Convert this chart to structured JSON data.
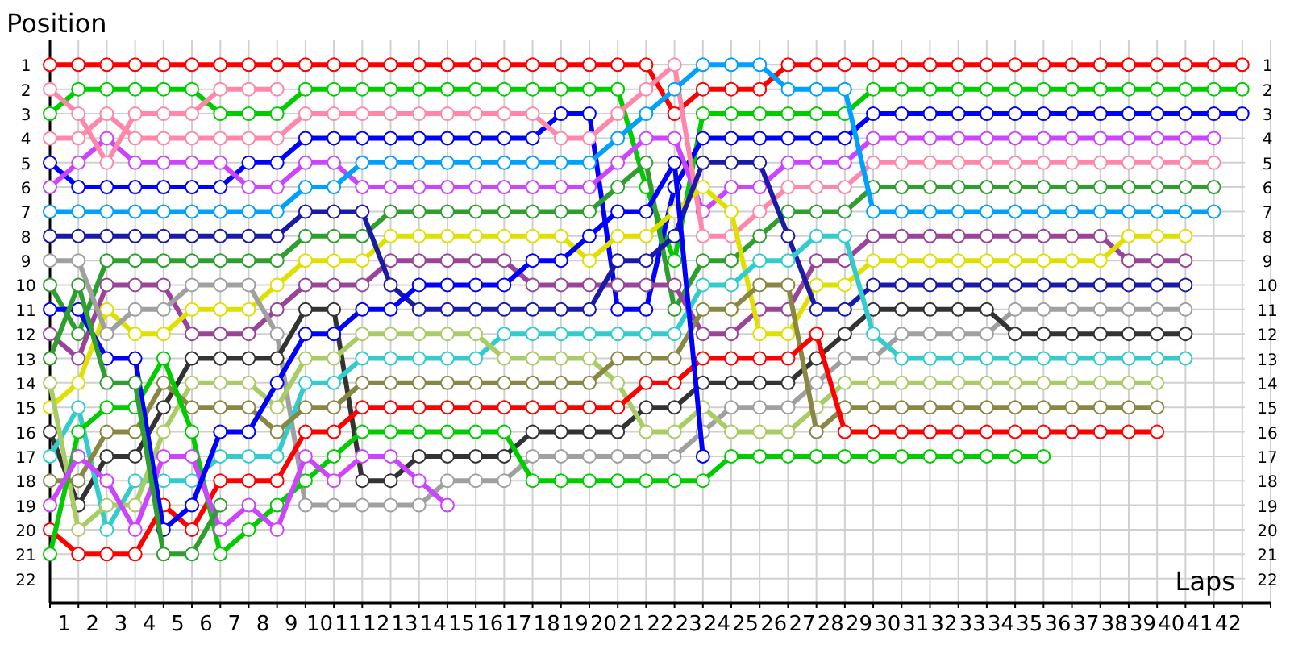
{
  "chart_data": {
    "type": "line",
    "xlabel": "Laps",
    "ylabel": "Position",
    "grid": true,
    "marker": "circle",
    "xlim": [
      0,
      43
    ],
    "ylim": [
      23,
      0
    ],
    "y2lim": [
      23,
      0
    ],
    "xticks": [
      {
        "value": 0,
        "label": null
      },
      {
        "value": 0.5,
        "label": "1"
      },
      {
        "value": 1,
        "label": null
      },
      {
        "value": 1.5,
        "label": "2"
      },
      {
        "value": 2,
        "label": null
      },
      {
        "value": 2.5,
        "label": "3"
      },
      {
        "value": 3,
        "label": null
      },
      {
        "value": 3.5,
        "label": "4"
      },
      {
        "value": 4,
        "label": null
      },
      {
        "value": 4.5,
        "label": "5"
      },
      {
        "value": 5,
        "label": null
      },
      {
        "value": 5.5,
        "label": "6"
      },
      {
        "value": 6,
        "label": null
      },
      {
        "value": 6.5,
        "label": "7"
      },
      {
        "value": 7,
        "label": null
      },
      {
        "value": 7.5,
        "label": "8"
      },
      {
        "value": 8,
        "label": null
      },
      {
        "value": 8.5,
        "label": "9"
      },
      {
        "value": 9,
        "label": null
      },
      {
        "value": 9.5,
        "label": "10"
      },
      {
        "value": 10,
        "label": null
      },
      {
        "value": 10.5,
        "label": "11"
      },
      {
        "value": 11,
        "label": null
      },
      {
        "value": 11.5,
        "label": "12"
      },
      {
        "value": 12,
        "label": null
      },
      {
        "value": 12.5,
        "label": "13"
      },
      {
        "value": 13,
        "label": null
      },
      {
        "value": 13.5,
        "label": "14"
      },
      {
        "value": 14,
        "label": null
      },
      {
        "value": 14.5,
        "label": "15"
      },
      {
        "value": 15,
        "label": null
      },
      {
        "value": 15.5,
        "label": "16"
      },
      {
        "value": 16,
        "label": null
      },
      {
        "value": 16.5,
        "label": "17"
      },
      {
        "value": 17,
        "label": null
      },
      {
        "value": 17.5,
        "label": "18"
      },
      {
        "value": 18,
        "label": null
      },
      {
        "value": 18.5,
        "label": "19"
      },
      {
        "value": 19,
        "label": null
      },
      {
        "value": 19.5,
        "label": "20"
      },
      {
        "value": 20,
        "label": null
      },
      {
        "value": 20.5,
        "label": "21"
      },
      {
        "value": 21,
        "label": null
      },
      {
        "value": 21.5,
        "label": "22"
      },
      {
        "value": 22,
        "label": null
      },
      {
        "value": 22.5,
        "label": "23"
      },
      {
        "value": 23,
        "label": null
      },
      {
        "value": 23.5,
        "label": "24"
      },
      {
        "value": 24,
        "label": null
      },
      {
        "value": 24.5,
        "label": "25"
      },
      {
        "value": 25,
        "label": null
      },
      {
        "value": 25.5,
        "label": "26"
      },
      {
        "value": 26,
        "label": null
      },
      {
        "value": 26.5,
        "label": "27"
      },
      {
        "value": 27,
        "label": null
      },
      {
        "value": 27.5,
        "label": "28"
      },
      {
        "value": 28,
        "label": null
      },
      {
        "value": 28.5,
        "label": "29"
      },
      {
        "value": 29,
        "label": null
      },
      {
        "value": 29.5,
        "label": "30"
      },
      {
        "value": 30,
        "label": null
      },
      {
        "value": 30.5,
        "label": "31"
      },
      {
        "value": 31,
        "label": null
      },
      {
        "value": 31.5,
        "label": "32"
      },
      {
        "value": 32,
        "label": null
      },
      {
        "value": 32.5,
        "label": "33"
      },
      {
        "value": 33,
        "label": null
      },
      {
        "value": 33.5,
        "label": "34"
      },
      {
        "value": 34,
        "label": null
      },
      {
        "value": 34.5,
        "label": "35"
      },
      {
        "value": 35,
        "label": null
      },
      {
        "value": 35.5,
        "label": "36"
      },
      {
        "value": 36,
        "label": null
      },
      {
        "value": 36.5,
        "label": "37"
      },
      {
        "value": 37,
        "label": null
      },
      {
        "value": 37.5,
        "label": "38"
      },
      {
        "value": 38,
        "label": null
      },
      {
        "value": 38.5,
        "label": "39"
      },
      {
        "value": 39,
        "label": null
      },
      {
        "value": 39.5,
        "label": "40"
      },
      {
        "value": 40,
        "label": null
      },
      {
        "value": 40.5,
        "label": "41"
      },
      {
        "value": 41,
        "label": null
      },
      {
        "value": 41.5,
        "label": "42"
      },
      {
        "value": 42,
        "label": null
      },
      {
        "value": 43,
        "label": null
      }
    ],
    "yticks": [
      1,
      2,
      3,
      4,
      5,
      6,
      7,
      8,
      9,
      10,
      11,
      12,
      13,
      14,
      15,
      16,
      17,
      18,
      19,
      20,
      21,
      22
    ],
    "y2ticks": [
      1,
      2,
      3,
      4,
      5,
      6,
      7,
      8,
      9,
      10,
      11,
      12,
      13,
      14,
      15,
      16,
      17,
      18,
      19,
      20,
      21,
      22
    ],
    "x": [
      0,
      1,
      2,
      3,
      4,
      5,
      6,
      7,
      8,
      9,
      10,
      11,
      12,
      13,
      14,
      15,
      16,
      17,
      18,
      19,
      20,
      21,
      22,
      23,
      24,
      25,
      26,
      27,
      28,
      29,
      30,
      31,
      32,
      33,
      34,
      35,
      36,
      37,
      38,
      39,
      40,
      41,
      42
    ],
    "series": [
      {
        "color": "#ff0000",
        "values": [
          1,
          1,
          1,
          1,
          1,
          1,
          1,
          1,
          1,
          1,
          1,
          1,
          1,
          1,
          1,
          1,
          1,
          1,
          1,
          1,
          1,
          1,
          3,
          2,
          2,
          2,
          1,
          1,
          1,
          1,
          1,
          1,
          1,
          1,
          1,
          1,
          1,
          1,
          1,
          1,
          1,
          1,
          1
        ]
      },
      {
        "color": "#00cc00",
        "values": [
          3,
          2,
          2,
          2,
          2,
          2,
          3,
          3,
          3,
          2,
          2,
          2,
          2,
          2,
          2,
          2,
          2,
          2,
          2,
          2,
          2,
          6,
          9,
          3,
          3,
          3,
          3,
          3,
          3,
          2,
          2,
          2,
          2,
          2,
          2,
          2,
          2,
          2,
          2,
          2,
          2,
          2,
          2
        ]
      },
      {
        "color": "#0000ff",
        "values": [
          5,
          6,
          6,
          6,
          6,
          6,
          6,
          5,
          5,
          4,
          4,
          4,
          4,
          4,
          4,
          4,
          4,
          4,
          3,
          3,
          11,
          11,
          6,
          4,
          4,
          4,
          4,
          4,
          4,
          3,
          3,
          3,
          3,
          3,
          3,
          3,
          3,
          3,
          3,
          3,
          3,
          3,
          3
        ]
      },
      {
        "color": "#cc44ff",
        "values": [
          6,
          5,
          4,
          5,
          5,
          5,
          5,
          6,
          6,
          5,
          5,
          6,
          6,
          6,
          6,
          6,
          6,
          6,
          6,
          6,
          5,
          4,
          4,
          7,
          6,
          6,
          5,
          5,
          5,
          4,
          4,
          4,
          4,
          4,
          4,
          4,
          4,
          4,
          4,
          4,
          4,
          4,
          null
        ]
      },
      {
        "color": "#ff88aa",
        "values": [
          4,
          4,
          3,
          4,
          4,
          4,
          4,
          4,
          4,
          3,
          3,
          3,
          3,
          3,
          3,
          3,
          3,
          3,
          4,
          4,
          3,
          2,
          1,
          8,
          8,
          7,
          6,
          6,
          6,
          5,
          5,
          5,
          5,
          5,
          5,
          5,
          5,
          5,
          5,
          5,
          5,
          5,
          null
        ]
      },
      {
        "color": "#2e9e2e",
        "values": [
          10,
          12,
          9,
          9,
          9,
          9,
          9,
          9,
          9,
          8,
          8,
          8,
          7,
          7,
          7,
          7,
          7,
          7,
          7,
          7,
          6,
          5,
          11,
          9,
          9,
          8,
          7,
          7,
          7,
          6,
          6,
          6,
          6,
          6,
          6,
          6,
          6,
          6,
          6,
          6,
          6,
          6,
          null
        ]
      },
      {
        "color": "#00a0ff",
        "values": [
          7,
          7,
          7,
          7,
          7,
          7,
          7,
          7,
          7,
          6,
          6,
          5,
          5,
          5,
          5,
          5,
          5,
          5,
          5,
          5,
          4,
          3,
          2,
          1,
          1,
          1,
          2,
          2,
          2,
          7,
          7,
          7,
          7,
          7,
          7,
          7,
          7,
          7,
          7,
          7,
          7,
          7,
          null
        ]
      },
      {
        "color": "#994499",
        "values": [
          12,
          13,
          10,
          10,
          10,
          12,
          12,
          12,
          11,
          10,
          10,
          10,
          9,
          9,
          9,
          9,
          9,
          10,
          10,
          10,
          10,
          10,
          10,
          12,
          12,
          11,
          11,
          9,
          9,
          8,
          8,
          8,
          8,
          8,
          8,
          8,
          8,
          8,
          9,
          9,
          9,
          null,
          null
        ]
      },
      {
        "color": "#e0e000",
        "values": [
          15,
          14,
          11,
          12,
          12,
          11,
          11,
          11,
          10,
          9,
          9,
          9,
          8,
          8,
          8,
          8,
          8,
          8,
          8,
          9,
          8,
          8,
          7,
          6,
          7,
          12,
          12,
          10,
          10,
          9,
          9,
          9,
          9,
          9,
          9,
          9,
          9,
          9,
          8,
          8,
          8,
          null,
          null
        ]
      },
      {
        "color": "#1a1aaa",
        "values": [
          8,
          8,
          8,
          8,
          8,
          8,
          8,
          8,
          8,
          7,
          7,
          7,
          10,
          11,
          11,
          11,
          11,
          11,
          11,
          11,
          9,
          9,
          8,
          5,
          5,
          5,
          8,
          11,
          11,
          10,
          10,
          10,
          10,
          10,
          10,
          10,
          10,
          10,
          10,
          10,
          10,
          null,
          null
        ]
      },
      {
        "color": "#a0a0a0",
        "values": [
          9,
          9,
          12,
          11,
          11,
          10,
          10,
          10,
          12,
          19,
          19,
          19,
          19,
          19,
          18,
          18,
          18,
          17,
          17,
          17,
          17,
          17,
          17,
          16,
          15,
          15,
          15,
          14,
          13,
          13,
          12,
          12,
          12,
          12,
          11,
          11,
          11,
          11,
          11,
          11,
          11,
          null,
          null
        ]
      },
      {
        "color": "#333333",
        "values": [
          16,
          19,
          17,
          17,
          15,
          13,
          13,
          13,
          13,
          11,
          11,
          18,
          18,
          17,
          17,
          17,
          17,
          16,
          16,
          16,
          16,
          15,
          15,
          14,
          14,
          14,
          14,
          13,
          12,
          11,
          11,
          11,
          11,
          11,
          12,
          12,
          12,
          12,
          12,
          12,
          12,
          null,
          null
        ]
      },
      {
        "color": "#33cccc",
        "values": [
          17,
          15,
          20,
          18,
          18,
          18,
          17,
          17,
          17,
          14,
          14,
          13,
          13,
          13,
          13,
          13,
          12,
          12,
          12,
          12,
          12,
          12,
          12,
          10,
          10,
          9,
          9,
          8,
          8,
          12,
          13,
          13,
          13,
          13,
          13,
          13,
          13,
          13,
          13,
          13,
          13,
          null,
          null
        ]
      },
      {
        "color": "#aacc66",
        "values": [
          14,
          20,
          19,
          19,
          16,
          14,
          14,
          14,
          15,
          13,
          13,
          12,
          12,
          12,
          12,
          12,
          13,
          13,
          13,
          13,
          14,
          16,
          16,
          15,
          16,
          16,
          16,
          15,
          14,
          14,
          14,
          14,
          14,
          14,
          14,
          14,
          14,
          14,
          14,
          14,
          null,
          null,
          null
        ]
      },
      {
        "color": "#888844",
        "values": [
          18,
          18,
          16,
          16,
          14,
          15,
          15,
          15,
          16,
          15,
          15,
          14,
          14,
          14,
          14,
          14,
          14,
          14,
          14,
          14,
          13,
          13,
          13,
          11,
          11,
          10,
          10,
          16,
          15,
          15,
          15,
          15,
          15,
          15,
          15,
          15,
          15,
          15,
          15,
          15,
          null,
          null,
          null
        ]
      },
      {
        "color": "#ff0000",
        "values": [
          20,
          21,
          21,
          21,
          19,
          20,
          18,
          18,
          18,
          16,
          16,
          15,
          15,
          15,
          15,
          15,
          15,
          15,
          15,
          15,
          15,
          14,
          14,
          13,
          13,
          13,
          13,
          12,
          16,
          16,
          16,
          16,
          16,
          16,
          16,
          16,
          16,
          16,
          16,
          16,
          null,
          null,
          null
        ]
      },
      {
        "color": "#00cc00",
        "values": [
          21,
          16,
          15,
          15,
          13,
          16,
          21,
          20,
          19,
          18,
          17,
          16,
          16,
          16,
          16,
          16,
          16,
          18,
          18,
          18,
          18,
          18,
          18,
          18,
          17,
          17,
          17,
          17,
          17,
          17,
          17,
          17,
          17,
          17,
          17,
          17,
          null,
          null,
          null,
          null,
          null,
          null,
          null
        ]
      },
      {
        "color": "#ff88aa",
        "values": [
          2,
          3,
          5,
          3,
          3,
          3,
          2,
          2,
          2,
          null,
          null,
          null,
          null,
          null,
          null,
          null,
          null,
          null,
          null,
          null,
          null,
          null,
          null,
          null,
          null,
          null,
          null,
          null,
          null,
          null,
          null,
          null,
          null,
          null,
          null,
          null,
          null,
          null,
          null,
          null,
          null,
          null,
          null
        ]
      },
      {
        "color": "#cc44ff",
        "values": [
          19,
          17,
          18,
          20,
          17,
          17,
          20,
          19,
          20,
          17,
          18,
          17,
          17,
          18,
          19,
          null,
          null,
          null,
          null,
          null,
          null,
          null,
          null,
          null,
          null,
          null,
          null,
          null,
          null,
          null,
          null,
          null,
          null,
          null,
          null,
          null,
          null,
          null,
          null,
          null,
          null,
          null,
          null
        ]
      },
      {
        "color": "#0000ff",
        "values": [
          11,
          11,
          13,
          13,
          20,
          19,
          16,
          16,
          14,
          12,
          12,
          11,
          11,
          10,
          10,
          10,
          10,
          9,
          9,
          8,
          7,
          7,
          5,
          17,
          null,
          null,
          null,
          null,
          null,
          null,
          null,
          null,
          null,
          null,
          null,
          null,
          null,
          null,
          null,
          null,
          null,
          null,
          null
        ]
      },
      {
        "color": "#2e9e2e",
        "values": [
          13,
          10,
          14,
          14,
          21,
          21,
          19,
          null,
          null,
          null,
          null,
          null,
          null,
          null,
          null,
          null,
          null,
          null,
          null,
          null,
          null,
          null,
          null,
          null,
          null,
          null,
          null,
          null,
          null,
          null,
          null,
          null,
          null,
          null,
          null,
          null,
          null,
          null,
          null,
          null,
          null,
          null,
          null
        ]
      }
    ]
  }
}
